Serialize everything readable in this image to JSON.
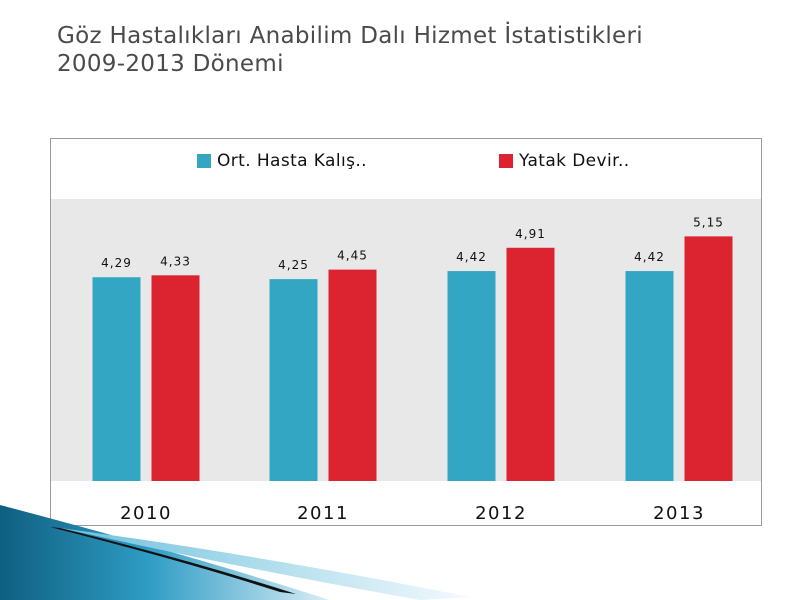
{
  "title_line1": "Göz Hastalıkları Anabilim Dalı Hizmet İstatistikleri",
  "title_line2": "2009-2013 Dönemi",
  "colors": {
    "series1": "#33a6c4",
    "series2": "#dc2430",
    "plot_bg": "#e8e8e8",
    "accent": "#1a7fa3"
  },
  "chart_data": {
    "type": "bar",
    "categories": [
      "2010",
      "2011",
      "2012",
      "2013"
    ],
    "series": [
      {
        "name": "Ort. Hasta Kalış..",
        "values": [
          4.29,
          4.25,
          4.42,
          4.42
        ],
        "labels": [
          "4,29",
          "4,25",
          "4,42",
          "4,42"
        ]
      },
      {
        "name": "Yatak Devir..",
        "values": [
          4.33,
          4.45,
          4.91,
          5.15
        ],
        "labels": [
          "4,33",
          "4,45",
          "4,91",
          "5,15"
        ]
      }
    ],
    "ylim": [
      0,
      8
    ],
    "legend": "top",
    "grid": false
  }
}
